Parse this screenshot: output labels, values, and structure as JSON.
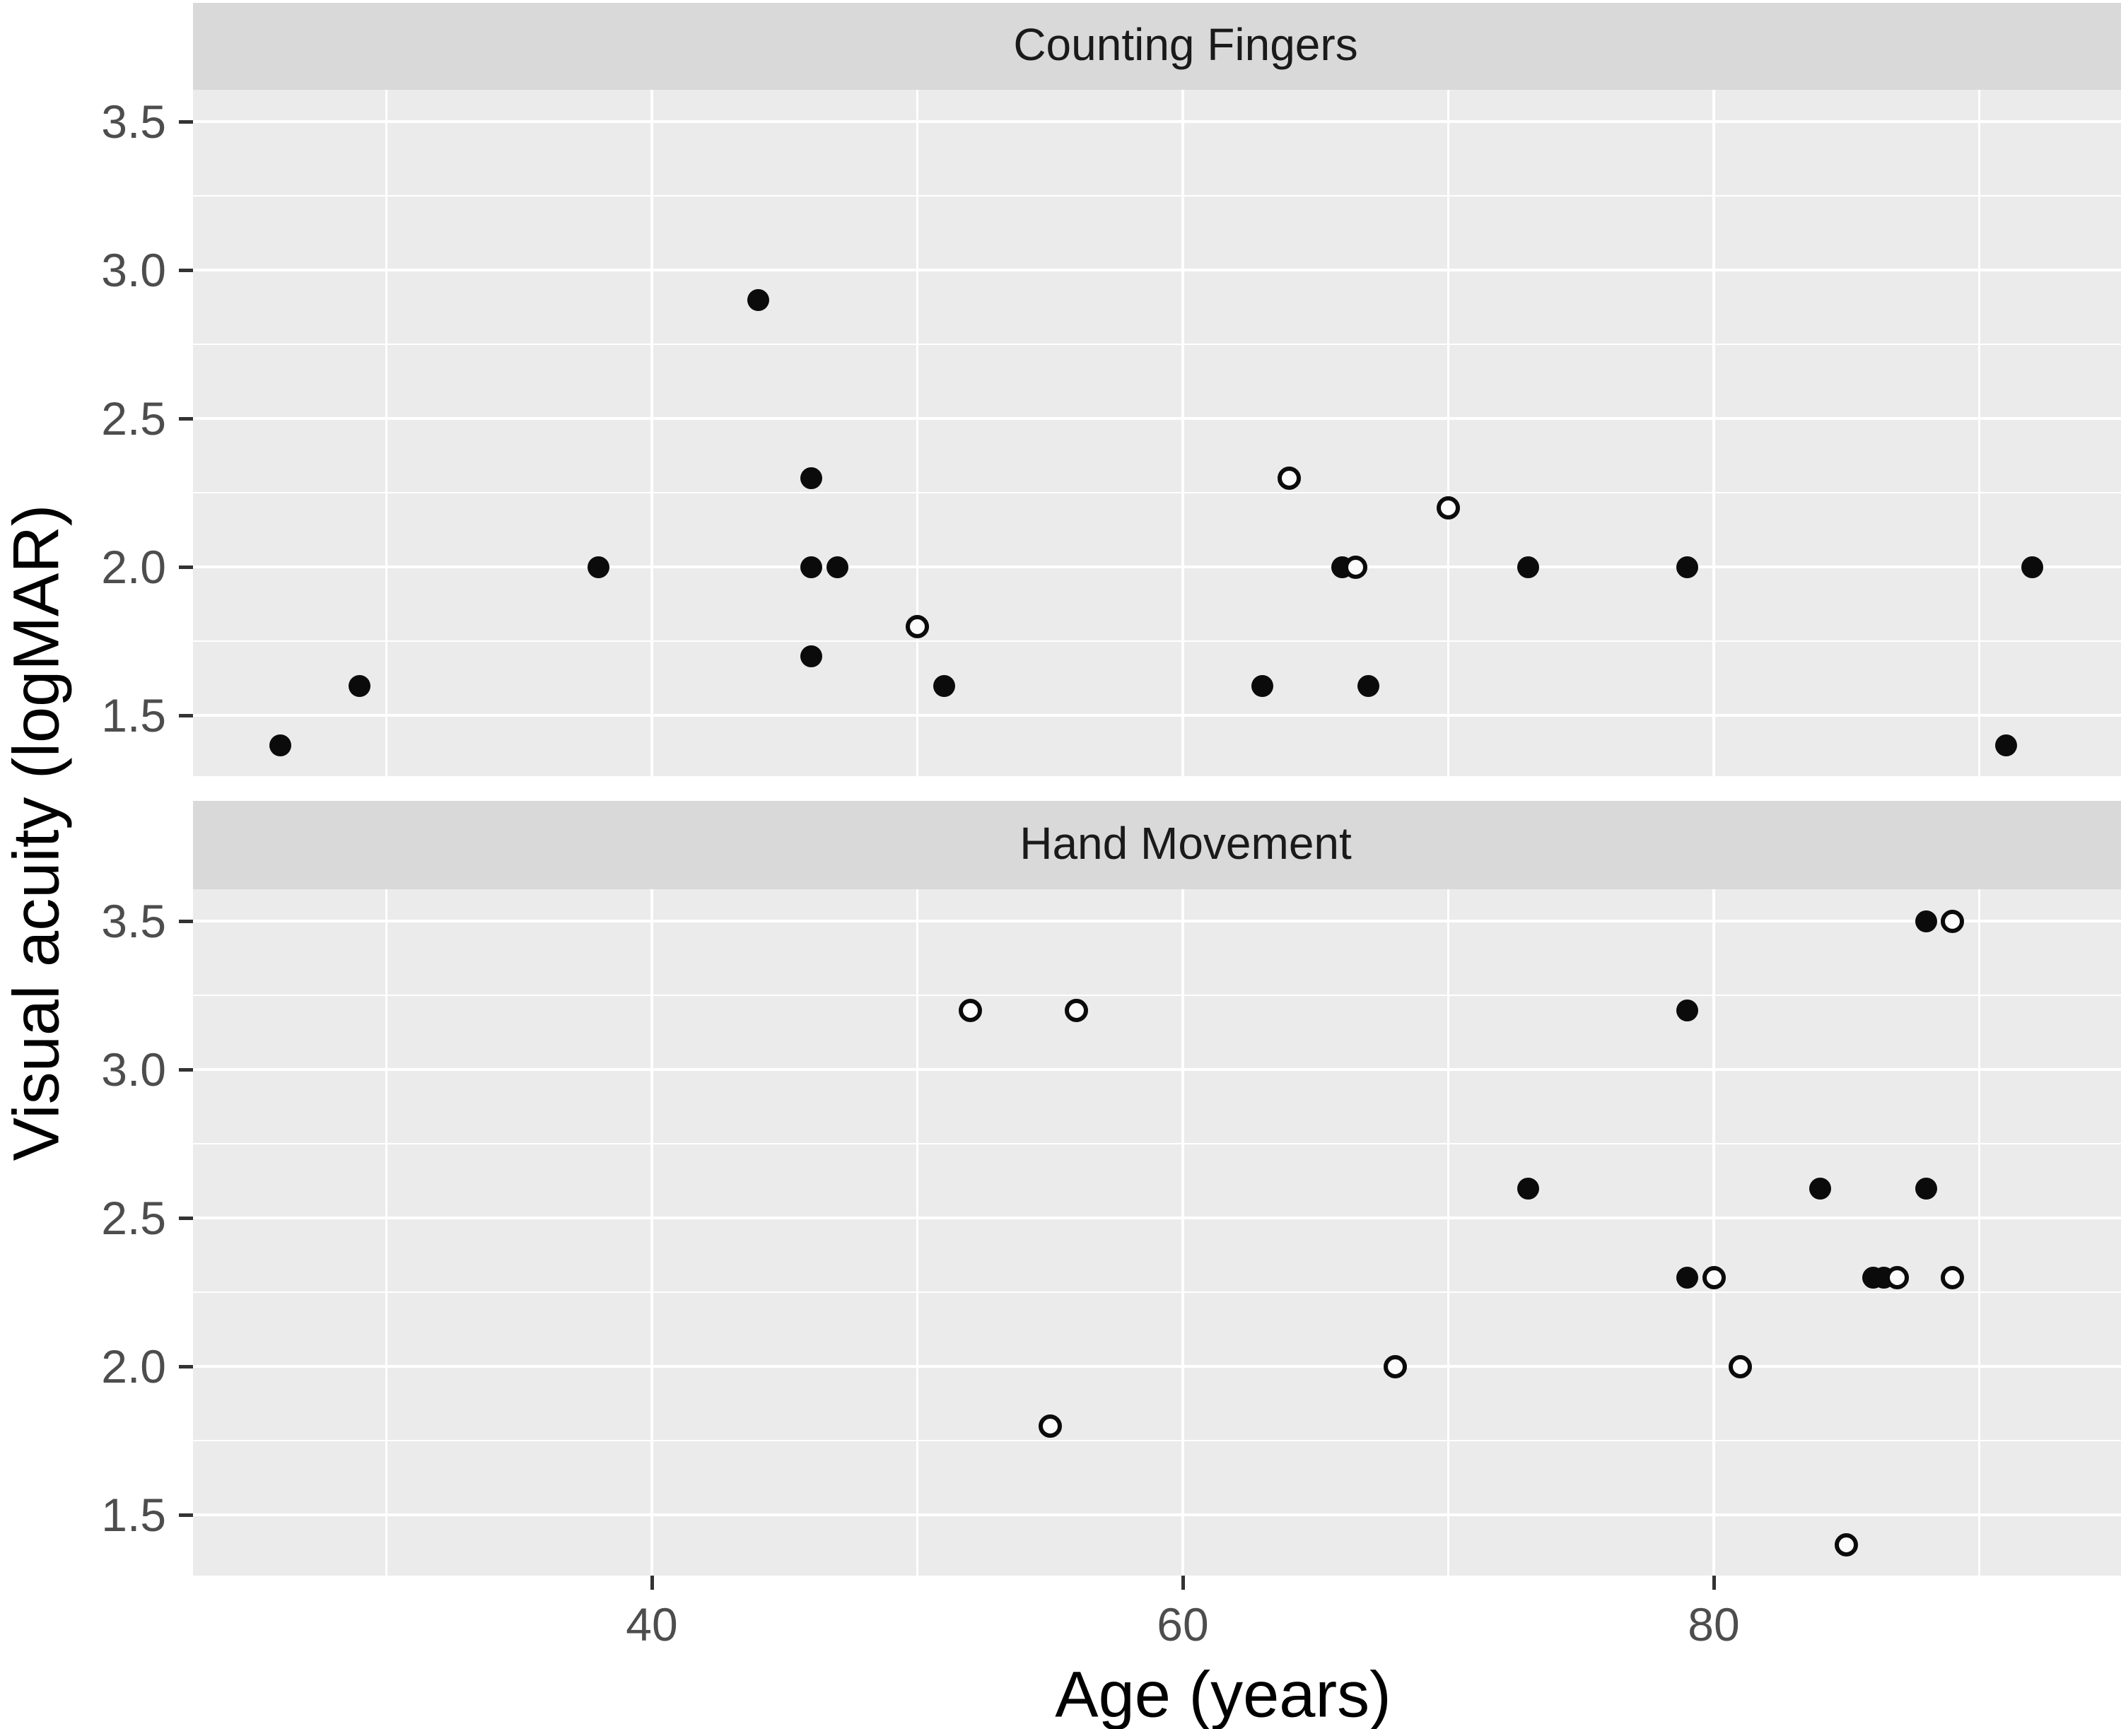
{
  "figure": {
    "y_axis_title": "Visual acuity (logMAR)",
    "x_axis_title": "Age (years)",
    "colors": {
      "panel_background": "#ebebeb",
      "strip_background": "#d9d9d9",
      "gridline": "#ffffff",
      "point": "#0b0b0b",
      "tick_label": "#4d4d4d",
      "tick_mark": "#333333"
    }
  },
  "chart_data": {
    "type": "scatter",
    "title": "",
    "xlabel": "Age (years)",
    "ylabel": "Visual acuity (logMAR)",
    "facet_variable_values": [
      "Counting Fingers",
      "Hand Movement"
    ],
    "x_ticks": [
      {
        "label": "40",
        "value": 40
      },
      {
        "label": "60",
        "value": 60
      },
      {
        "label": "80",
        "value": 80
      }
    ],
    "x_minor_ticks": [
      30,
      50,
      70,
      90
    ],
    "xlim": [
      22.7,
      95.3
    ],
    "y_ticks": [
      {
        "label": "3.5",
        "value": 3.5
      },
      {
        "label": "3.0",
        "value": 3.0
      },
      {
        "label": "2.5",
        "value": 2.5
      },
      {
        "label": "2.0",
        "value": 2.0
      },
      {
        "label": "1.5",
        "value": 1.5
      }
    ],
    "y_minor_ticks": [
      3.25,
      2.75,
      2.25,
      1.75
    ],
    "ylim": [
      1.295,
      3.605
    ],
    "grid": true,
    "legend_position": "none",
    "facets": [
      {
        "label": "Counting Fingers",
        "series": [
          {
            "name": "filled",
            "marker": "filled-circle",
            "points": [
              [
                26,
                1.4
              ],
              [
                29,
                1.6
              ],
              [
                38,
                2.0
              ],
              [
                44,
                2.9
              ],
              [
                46,
                1.7
              ],
              [
                46,
                2.0
              ],
              [
                46,
                2.3
              ],
              [
                47,
                2.0
              ],
              [
                51,
                1.6
              ],
              [
                63,
                1.6
              ],
              [
                66,
                2.0
              ],
              [
                67,
                1.6
              ],
              [
                73,
                2.0
              ],
              [
                79,
                2.0
              ],
              [
                91,
                1.4
              ],
              [
                92,
                2.0
              ]
            ]
          },
          {
            "name": "open",
            "marker": "open-circle",
            "points": [
              [
                50,
                1.8
              ],
              [
                64,
                2.3
              ],
              [
                66.5,
                2.0
              ],
              [
                70,
                2.2
              ]
            ]
          }
        ]
      },
      {
        "label": "Hand Movement",
        "series": [
          {
            "name": "filled",
            "marker": "filled-circle",
            "points": [
              [
                73,
                2.6
              ],
              [
                79,
                2.3
              ],
              [
                79,
                3.2
              ],
              [
                84,
                2.6
              ],
              [
                86,
                2.3
              ],
              [
                86.4,
                2.3
              ],
              [
                88,
                2.6
              ],
              [
                88,
                3.5
              ]
            ]
          },
          {
            "name": "open",
            "marker": "open-circle",
            "points": [
              [
                52,
                3.2
              ],
              [
                55,
                1.8
              ],
              [
                56,
                3.2
              ],
              [
                68,
                2.0
              ],
              [
                80,
                2.3
              ],
              [
                81,
                2.0
              ],
              [
                85,
                1.4
              ],
              [
                86.9,
                2.3
              ],
              [
                89,
                2.3
              ],
              [
                89,
                3.5
              ]
            ]
          }
        ]
      }
    ]
  }
}
